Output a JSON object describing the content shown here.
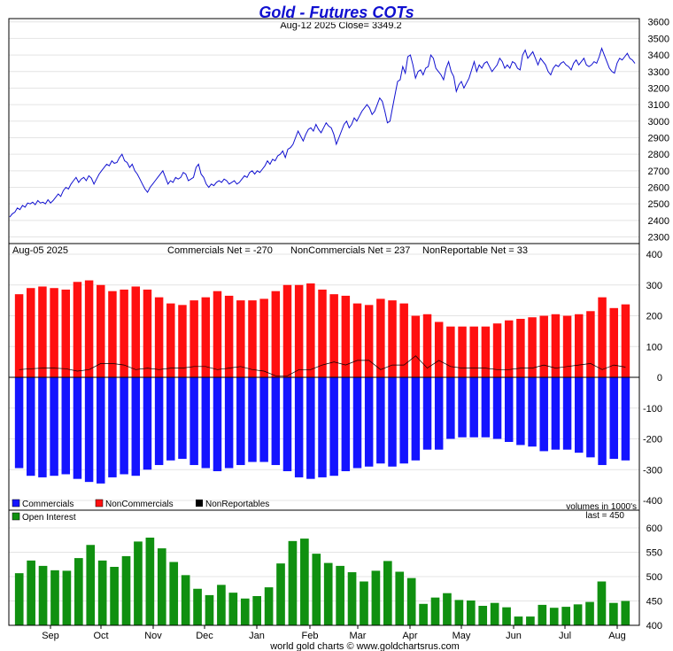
{
  "title": "Gold - Futures COTs",
  "subtitle": "Aug-12  2025   Close= 3349.2",
  "footer": "world gold charts © www.goldchartsrus.com",
  "colors": {
    "price_line": "#1010d0",
    "commercials": "#1414ff",
    "noncommercials": "#ff1010",
    "nonreportables": "#000000",
    "open_interest": "#109010",
    "title": "#1010d0"
  },
  "chart_data": [
    {
      "type": "line",
      "panel": "price",
      "yticks": [
        2300,
        2400,
        2500,
        2600,
        2700,
        2800,
        2900,
        3000,
        3100,
        3200,
        3300,
        3400,
        3500,
        3600
      ],
      "ylim": [
        2260,
        3620
      ],
      "xlabels": [
        "Sep",
        "Oct",
        "Nov",
        "Dec",
        "Jan",
        "Feb",
        "Mar",
        "Apr",
        "May",
        "Jun",
        "Jul",
        "Aug"
      ],
      "values": [
        2420,
        2440,
        2450,
        2475,
        2465,
        2490,
        2480,
        2505,
        2500,
        2510,
        2495,
        2520,
        2505,
        2510,
        2500,
        2525,
        2505,
        2520,
        2540,
        2560,
        2545,
        2580,
        2600,
        2590,
        2620,
        2640,
        2660,
        2630,
        2650,
        2660,
        2640,
        2670,
        2655,
        2620,
        2650,
        2680,
        2700,
        2720,
        2740,
        2730,
        2760,
        2745,
        2750,
        2780,
        2800,
        2760,
        2750,
        2720,
        2740,
        2700,
        2680,
        2650,
        2620,
        2590,
        2570,
        2600,
        2620,
        2640,
        2660,
        2680,
        2700,
        2660,
        2620,
        2640,
        2630,
        2660,
        2650,
        2660,
        2690,
        2680,
        2640,
        2650,
        2660,
        2720,
        2740,
        2680,
        2660,
        2620,
        2600,
        2620,
        2610,
        2630,
        2640,
        2630,
        2650,
        2640,
        2620,
        2630,
        2640,
        2620,
        2630,
        2650,
        2670,
        2660,
        2690,
        2700,
        2680,
        2700,
        2690,
        2710,
        2730,
        2760,
        2740,
        2770,
        2760,
        2790,
        2800,
        2820,
        2780,
        2830,
        2840,
        2860,
        2900,
        2940,
        2910,
        2880,
        2920,
        2950,
        2960,
        2940,
        2980,
        2950,
        2930,
        2960,
        2990,
        2970,
        2960,
        2920,
        2860,
        2900,
        2940,
        2980,
        3000,
        2960,
        2980,
        3020,
        3000,
        3030,
        3060,
        3080,
        3100,
        3080,
        3040,
        3060,
        3100,
        3140,
        3120,
        3060,
        2990,
        3000,
        3080,
        3160,
        3240,
        3250,
        3330,
        3290,
        3390,
        3400,
        3340,
        3260,
        3300,
        3310,
        3280,
        3320,
        3330,
        3400,
        3380,
        3320,
        3300,
        3280,
        3250,
        3320,
        3360,
        3300,
        3270,
        3180,
        3220,
        3240,
        3200,
        3230,
        3260,
        3310,
        3360,
        3300,
        3340,
        3320,
        3350,
        3360,
        3330,
        3300,
        3320,
        3340,
        3380,
        3360,
        3320,
        3340,
        3320,
        3360,
        3350,
        3320,
        3310,
        3400,
        3430,
        3380,
        3400,
        3420,
        3380,
        3340,
        3380,
        3360,
        3340,
        3300,
        3280,
        3320,
        3340,
        3330,
        3350,
        3360,
        3340,
        3330,
        3310,
        3350,
        3370,
        3340,
        3360,
        3380,
        3340,
        3330,
        3340,
        3360,
        3350,
        3390,
        3440,
        3400,
        3360,
        3320,
        3300,
        3290,
        3350,
        3380,
        3370,
        3390,
        3410,
        3380,
        3370,
        3349
      ]
    },
    {
      "type": "bar",
      "panel": "positions",
      "header_date": "Aug-05  2025",
      "header_commercials": "Commercials Net = -270",
      "header_noncommercials": "NonCommercials Net = 237",
      "header_nonreportables": "NonReportable Net = 33",
      "yticks": [
        -400,
        -300,
        -200,
        -100,
        0,
        100,
        200,
        300,
        400
      ],
      "ylim": [
        -400,
        400
      ],
      "legend": [
        "Commercials",
        "NonCommercials",
        "NonReportables"
      ],
      "note": "volumes in 1000's",
      "series": [
        {
          "name": "NonCommercials",
          "values": [
            270,
            290,
            295,
            290,
            285,
            310,
            315,
            300,
            280,
            285,
            295,
            285,
            260,
            240,
            235,
            250,
            260,
            280,
            265,
            250,
            250,
            255,
            280,
            300,
            300,
            305,
            285,
            270,
            265,
            240,
            235,
            255,
            250,
            240,
            200,
            205,
            180,
            165,
            165,
            165,
            165,
            175,
            185,
            190,
            195,
            200,
            205,
            200,
            205,
            215,
            260,
            225,
            237
          ]
        },
        {
          "name": "Commercials",
          "values": [
            -295,
            -320,
            -325,
            -320,
            -315,
            -330,
            -340,
            -345,
            -325,
            -315,
            -320,
            -300,
            -285,
            -270,
            -265,
            -285,
            -295,
            -305,
            -295,
            -285,
            -275,
            -275,
            -285,
            -305,
            -325,
            -330,
            -325,
            -320,
            -305,
            -295,
            -290,
            -280,
            -290,
            -280,
            -270,
            -235,
            -235,
            -200,
            -195,
            -195,
            -195,
            -200,
            -210,
            -220,
            -225,
            -240,
            -235,
            -235,
            -245,
            -260,
            -285,
            -265,
            -270
          ]
        },
        {
          "name": "NonReportables",
          "values": [
            25,
            28,
            30,
            30,
            28,
            20,
            25,
            45,
            45,
            40,
            25,
            30,
            25,
            30,
            30,
            35,
            35,
            25,
            30,
            35,
            25,
            20,
            5,
            5,
            25,
            25,
            40,
            50,
            40,
            55,
            55,
            25,
            40,
            40,
            70,
            30,
            55,
            35,
            30,
            30,
            30,
            25,
            25,
            30,
            30,
            40,
            30,
            35,
            40,
            45,
            25,
            40,
            33
          ]
        }
      ]
    },
    {
      "type": "bar",
      "panel": "open_interest",
      "legend": [
        "Open Interest"
      ],
      "last_label": "last = 450",
      "yticks": [
        400,
        450,
        500,
        550,
        600
      ],
      "ylim": [
        400,
        620
      ],
      "series": [
        {
          "name": "Open Interest",
          "values": [
            507,
            533,
            522,
            513,
            512,
            538,
            565,
            533,
            520,
            542,
            572,
            580,
            558,
            530,
            503,
            475,
            462,
            483,
            467,
            455,
            460,
            478,
            527,
            573,
            578,
            547,
            528,
            522,
            509,
            490,
            512,
            532,
            510,
            497,
            444,
            457,
            466,
            452,
            451,
            440,
            446,
            437,
            418,
            418,
            442,
            436,
            438,
            443,
            448,
            490,
            446,
            450
          ]
        }
      ]
    }
  ],
  "panel3_header": "Open Interest"
}
